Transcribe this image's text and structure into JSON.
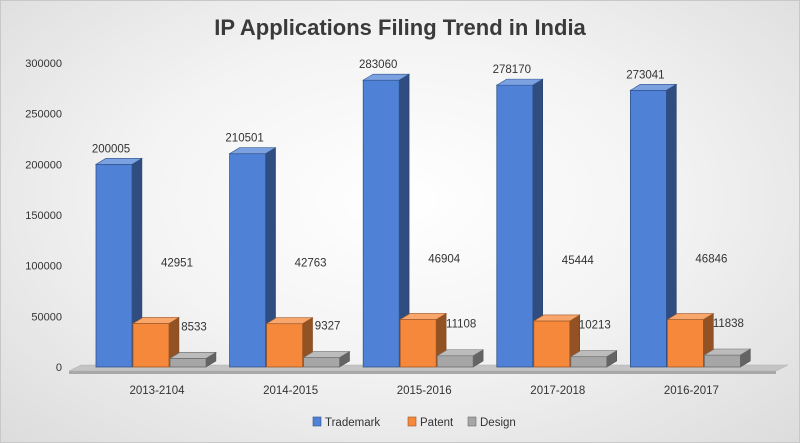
{
  "chart_data": {
    "type": "bar",
    "title": "IP Applications Filing Trend in India",
    "xlabel": "",
    "ylabel": "",
    "categories": [
      "2013-2104",
      "2014-2015",
      "2015-2016",
      "2017-2018",
      "2016-2017"
    ],
    "series": [
      {
        "name": "Trademark",
        "values": [
          200005,
          210501,
          283060,
          278170,
          273041
        ],
        "color": "#4f81d6"
      },
      {
        "name": "Patent",
        "values": [
          42951,
          42763,
          46904,
          45444,
          46846
        ],
        "color": "#f5883a"
      },
      {
        "name": "Design",
        "values": [
          8533,
          9327,
          11108,
          10213,
          11838
        ],
        "color": "#a6a6a6"
      }
    ],
    "ylim": [
      0,
      300000
    ],
    "yticks": [
      0,
      50000,
      100000,
      150000,
      200000,
      250000,
      300000
    ],
    "grid": false,
    "legend_position": "bottom"
  },
  "colors": {
    "trademark": "#4f81d6",
    "patent": "#f5883a",
    "design": "#a6a6a6",
    "floor": "#c4c4c4"
  }
}
